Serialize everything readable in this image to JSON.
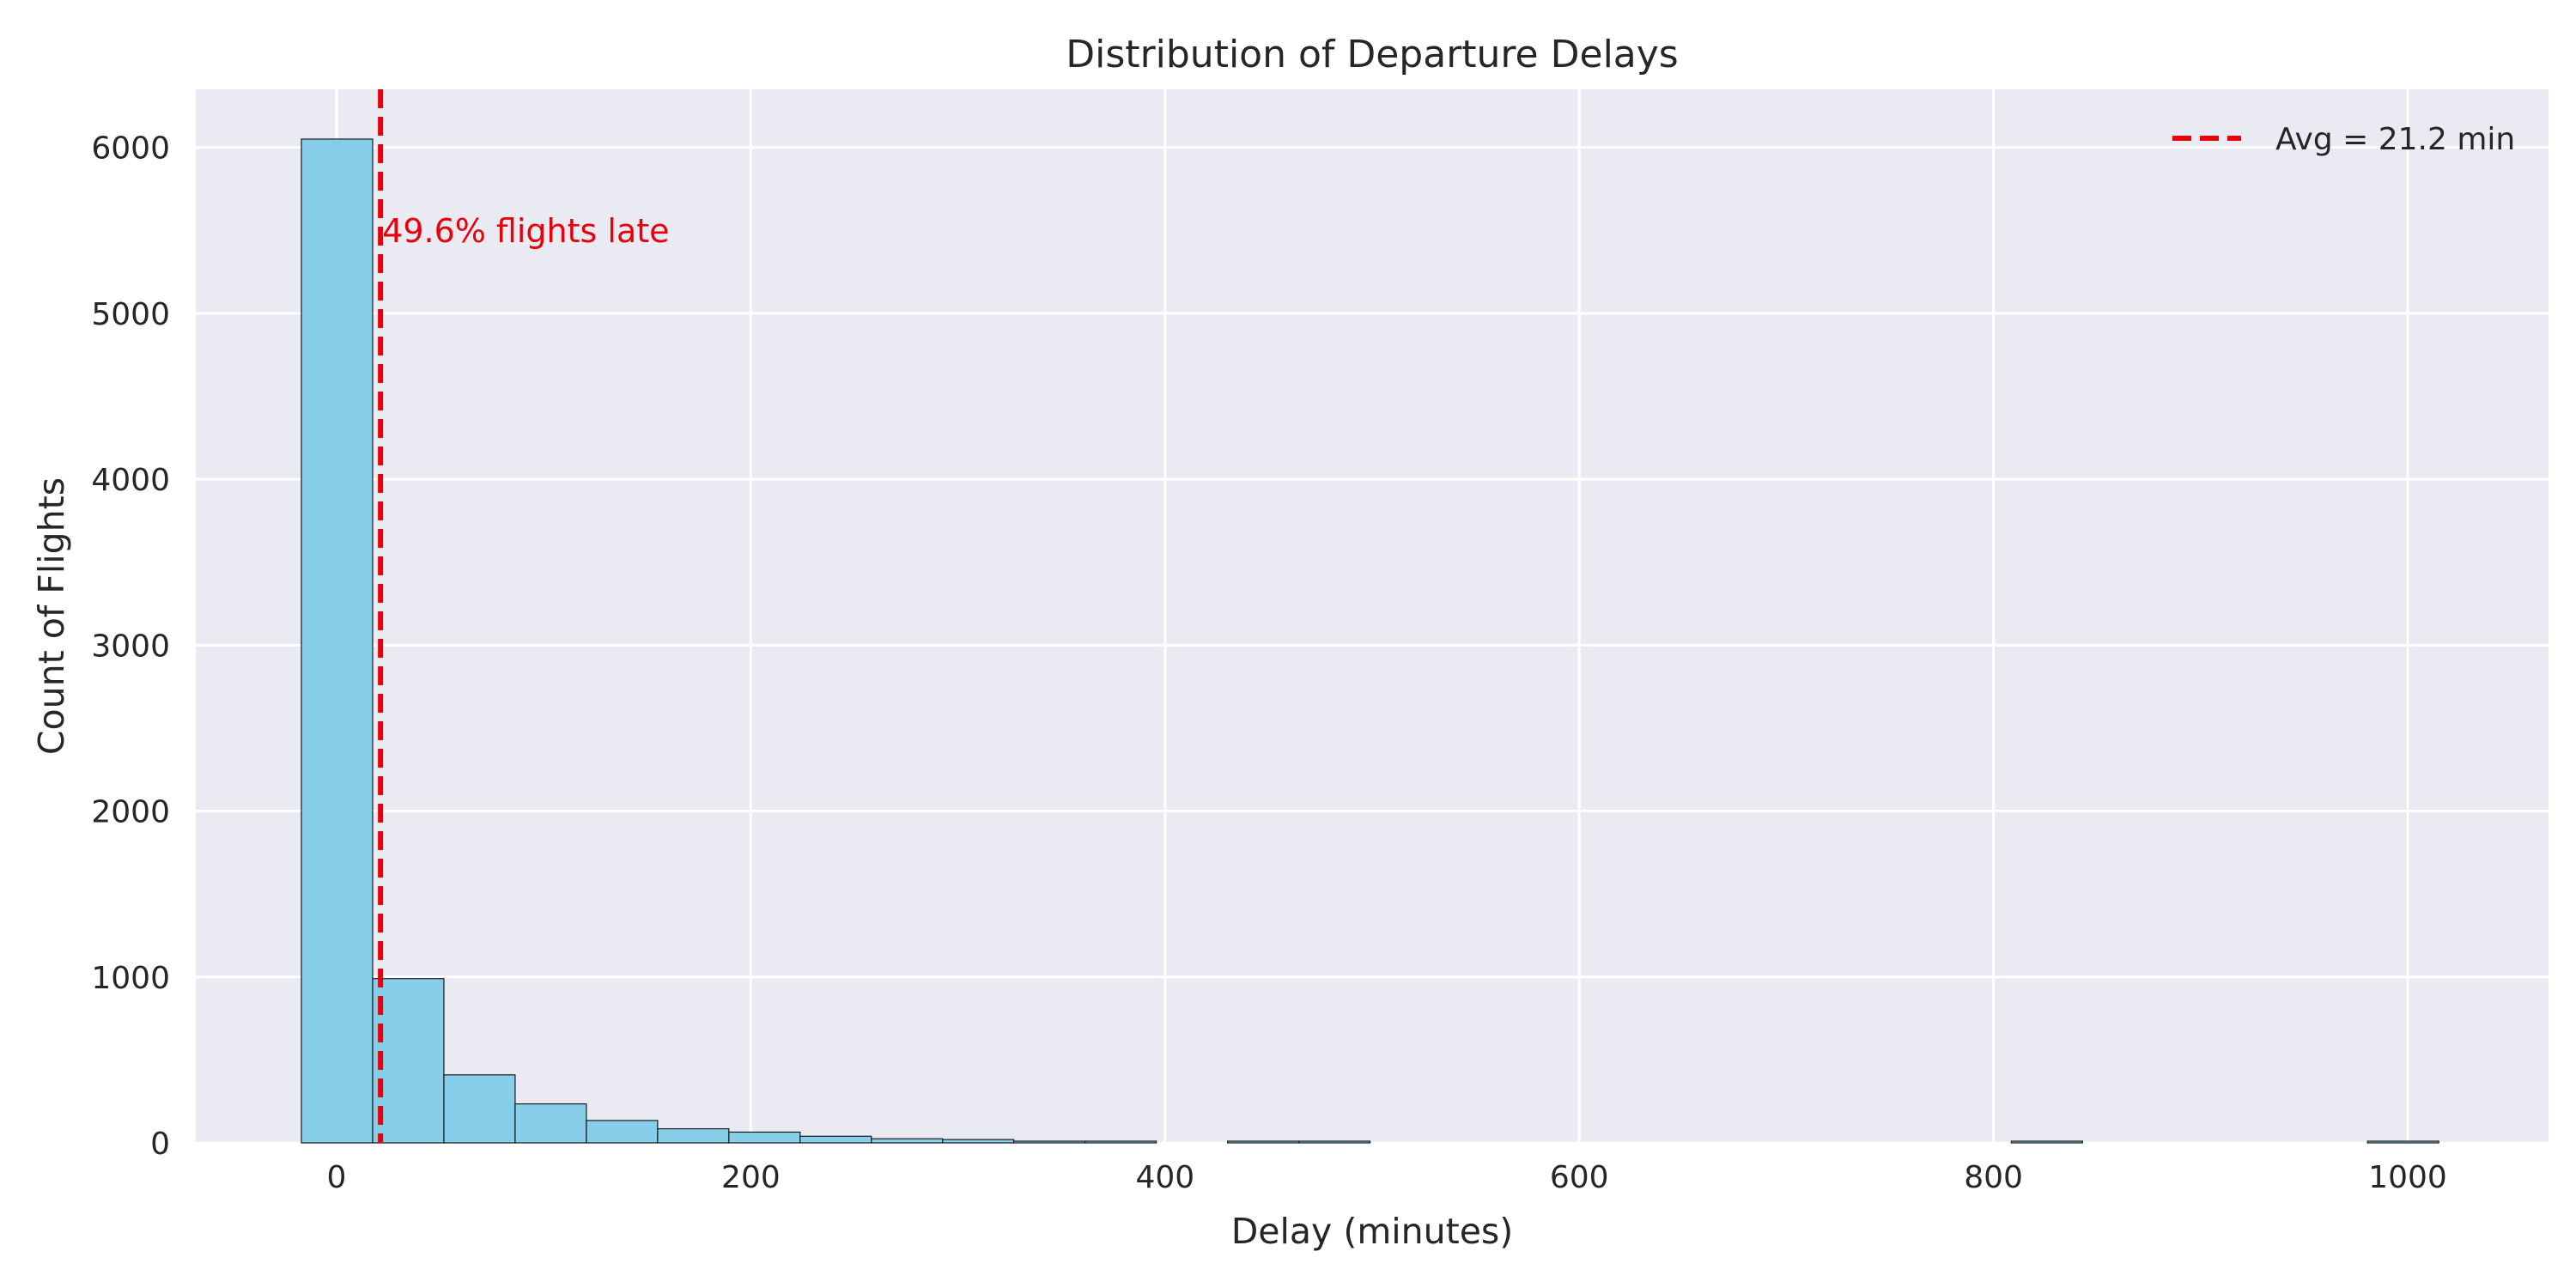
{
  "chart_data": {
    "type": "bar",
    "title": "Distribution of Departure Delays",
    "xlabel": "Delay (minutes)",
    "ylabel": "Count of Flights",
    "xlim": [
      -68,
      1068
    ],
    "ylim": [
      0,
      6350
    ],
    "xticks": [
      0,
      200,
      400,
      600,
      800,
      1000
    ],
    "yticks": [
      0,
      1000,
      2000,
      3000,
      4000,
      5000,
      6000
    ],
    "grid": true,
    "bin_edges": [
      -17,
      17.4,
      51.8,
      86.2,
      120.6,
      155,
      189.4,
      223.8,
      258.2,
      292.6,
      327,
      361.4,
      395.8,
      430.2,
      464.6,
      499,
      533.4,
      567.8,
      602.2,
      636.6,
      671,
      705.4,
      739.8,
      774.2,
      808.6,
      843,
      877.4,
      911.8,
      946.2,
      980.6,
      1015
    ],
    "counts": [
      6050,
      990,
      410,
      235,
      135,
      85,
      65,
      40,
      25,
      20,
      10,
      3,
      0,
      5,
      2,
      0,
      0,
      0,
      0,
      0,
      0,
      0,
      0,
      0,
      4,
      0,
      0,
      0,
      0,
      2
    ],
    "bar_color": "#87ceeb",
    "edge_color": "#1a1a1a",
    "avg_line": {
      "value": 21.2,
      "color": "#e8000b",
      "style": "dashed"
    },
    "annotation": {
      "text": "49.6% flights late",
      "x": 21.2,
      "y": 5430,
      "color": "#e8000b"
    },
    "legend": {
      "position": "top-right",
      "entries": [
        {
          "label": "Avg = 21.2 min",
          "color": "#e8000b",
          "style": "dashed"
        }
      ]
    }
  }
}
